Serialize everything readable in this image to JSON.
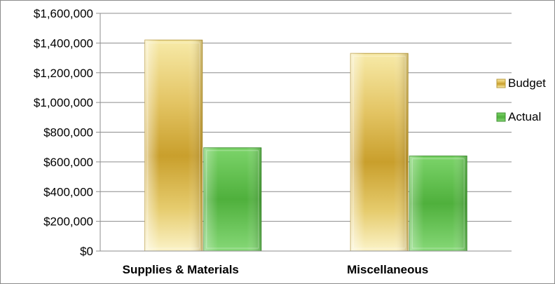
{
  "chart_data": {
    "type": "bar",
    "categories": [
      "Supplies & Materials",
      "Miscellaneous"
    ],
    "series": [
      {
        "name": "Budget",
        "values": [
          1420000,
          1330000
        ],
        "color": "#d4b44a"
      },
      {
        "name": "Actual",
        "values": [
          695000,
          640000
        ],
        "color": "#5cb84a"
      }
    ],
    "ylim": [
      0,
      1600000
    ],
    "yticks": [
      0,
      200000,
      400000,
      600000,
      800000,
      1000000,
      1200000,
      1400000,
      1600000
    ],
    "ytick_labels": [
      "$0",
      "$200,000",
      "$400,000",
      "$600,000",
      "$800,000",
      "$1,000,000",
      "$1,200,000",
      "$1,400,000",
      "$1,600,000"
    ],
    "grid": true,
    "legend": "right"
  }
}
